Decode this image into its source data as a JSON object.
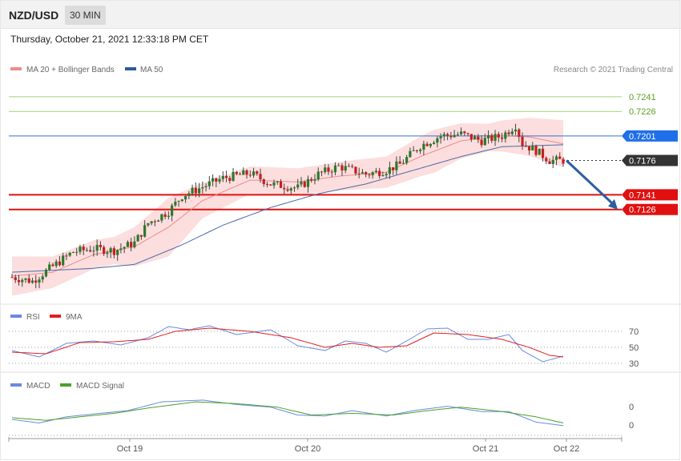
{
  "header": {
    "pair": "NZD/USD",
    "timeframe": "30 MIN"
  },
  "datetime": "Thursday, October 21, 2021 12:33:18 PM CET",
  "legend": {
    "ma20_bb": "MA 20 + Bollinger Bands",
    "ma50": "MA 50",
    "copyright": "Research © 2021 Trading Central",
    "rsi": "RSI",
    "rsi_ma": "9MA",
    "macd": "MACD",
    "macd_signal": "MACD Signal"
  },
  "colors": {
    "bull": "#2a7a2a",
    "bear": "#c81e1e",
    "band": "#fbd8d8",
    "ma20": "#f08a8a",
    "ma50": "#4a6aa8",
    "resistance": "#9ed37a",
    "pivot": "#3a6fd0",
    "support": "#e01010",
    "current": "#333333",
    "arrow": "#2d5fa0",
    "rsi": "#6a8ae0",
    "rsi_ma": "#e02020",
    "macd": "#6a8ae0",
    "macd_signal": "#4aa02a"
  },
  "chart_data": [
    {
      "type": "candlestick",
      "pair": "NZD/USD",
      "timeframe": "30 MIN",
      "price_levels": [
        {
          "value": 0.7241,
          "label": "0.7241",
          "kind": "resistance"
        },
        {
          "value": 0.7226,
          "label": "0.7226",
          "kind": "resistance"
        },
        {
          "value": 0.7201,
          "label": "0.7201",
          "kind": "pivot"
        },
        {
          "value": 0.7176,
          "label": "0.7176",
          "kind": "current"
        },
        {
          "value": 0.7141,
          "label": "0.7141",
          "kind": "support"
        },
        {
          "value": 0.7126,
          "label": "0.7126",
          "kind": "support"
        }
      ],
      "forecast_arrow": {
        "from": 0.7176,
        "to": 0.7126
      },
      "x_ticks": [
        "Oct 19",
        "Oct 20",
        "Oct 21",
        "Oct 22"
      ],
      "close_path": [
        {
          "i": 0,
          "v": 0.7057
        },
        {
          "i": 6,
          "v": 0.7053
        },
        {
          "i": 12,
          "v": 0.7068
        },
        {
          "i": 18,
          "v": 0.7083
        },
        {
          "i": 24,
          "v": 0.7086
        },
        {
          "i": 30,
          "v": 0.7084
        },
        {
          "i": 36,
          "v": 0.7092
        },
        {
          "i": 40,
          "v": 0.7112
        },
        {
          "i": 46,
          "v": 0.7124
        },
        {
          "i": 50,
          "v": 0.714
        },
        {
          "i": 56,
          "v": 0.7149
        },
        {
          "i": 62,
          "v": 0.7158
        },
        {
          "i": 70,
          "v": 0.7163
        },
        {
          "i": 76,
          "v": 0.7152
        },
        {
          "i": 84,
          "v": 0.7148
        },
        {
          "i": 90,
          "v": 0.7162
        },
        {
          "i": 96,
          "v": 0.717
        },
        {
          "i": 104,
          "v": 0.7162
        },
        {
          "i": 110,
          "v": 0.7166
        },
        {
          "i": 114,
          "v": 0.7172
        },
        {
          "i": 120,
          "v": 0.7191
        },
        {
          "i": 126,
          "v": 0.7201
        },
        {
          "i": 132,
          "v": 0.7203
        },
        {
          "i": 138,
          "v": 0.7196
        },
        {
          "i": 144,
          "v": 0.7201
        },
        {
          "i": 148,
          "v": 0.7212
        },
        {
          "i": 150,
          "v": 0.7193
        },
        {
          "i": 154,
          "v": 0.7186
        },
        {
          "i": 158,
          "v": 0.7176
        },
        {
          "i": 162,
          "v": 0.7176
        }
      ],
      "ma20_path": [
        {
          "i": 0,
          "v": 0.7058
        },
        {
          "i": 12,
          "v": 0.7062
        },
        {
          "i": 24,
          "v": 0.708
        },
        {
          "i": 36,
          "v": 0.7088
        },
        {
          "i": 46,
          "v": 0.7108
        },
        {
          "i": 56,
          "v": 0.7135
        },
        {
          "i": 70,
          "v": 0.7156
        },
        {
          "i": 84,
          "v": 0.7154
        },
        {
          "i": 96,
          "v": 0.716
        },
        {
          "i": 110,
          "v": 0.7164
        },
        {
          "i": 120,
          "v": 0.718
        },
        {
          "i": 132,
          "v": 0.7196
        },
        {
          "i": 144,
          "v": 0.7201
        },
        {
          "i": 152,
          "v": 0.72
        },
        {
          "i": 162,
          "v": 0.7193
        }
      ],
      "ma50_path": [
        {
          "i": 0,
          "v": 0.7062
        },
        {
          "i": 24,
          "v": 0.7066
        },
        {
          "i": 36,
          "v": 0.707
        },
        {
          "i": 50,
          "v": 0.709
        },
        {
          "i": 62,
          "v": 0.711
        },
        {
          "i": 76,
          "v": 0.7128
        },
        {
          "i": 90,
          "v": 0.7142
        },
        {
          "i": 104,
          "v": 0.7152
        },
        {
          "i": 120,
          "v": 0.7168
        },
        {
          "i": 132,
          "v": 0.718
        },
        {
          "i": 144,
          "v": 0.719
        },
        {
          "i": 162,
          "v": 0.7192
        }
      ],
      "bb_width_path": [
        {
          "i": 0,
          "v": 0.002
        },
        {
          "i": 12,
          "v": 0.0016
        },
        {
          "i": 30,
          "v": 0.0014
        },
        {
          "i": 46,
          "v": 0.003
        },
        {
          "i": 56,
          "v": 0.0018
        },
        {
          "i": 70,
          "v": 0.0014
        },
        {
          "i": 90,
          "v": 0.0014
        },
        {
          "i": 110,
          "v": 0.0016
        },
        {
          "i": 124,
          "v": 0.0022
        },
        {
          "i": 140,
          "v": 0.0014
        },
        {
          "i": 162,
          "v": 0.0024
        }
      ],
      "ylim": [
        0.7036,
        0.7258
      ]
    },
    {
      "type": "line",
      "name": "RSI",
      "levels": [
        70,
        50,
        30
      ],
      "ylim": [
        18,
        82
      ],
      "series": [
        {
          "name": "RSI",
          "path": [
            {
              "i": 0,
              "v": 46
            },
            {
              "i": 8,
              "v": 38
            },
            {
              "i": 16,
              "v": 55
            },
            {
              "i": 24,
              "v": 58
            },
            {
              "i": 32,
              "v": 53
            },
            {
              "i": 40,
              "v": 62
            },
            {
              "i": 46,
              "v": 76
            },
            {
              "i": 52,
              "v": 72
            },
            {
              "i": 58,
              "v": 77
            },
            {
              "i": 66,
              "v": 66
            },
            {
              "i": 76,
              "v": 72
            },
            {
              "i": 84,
              "v": 52
            },
            {
              "i": 92,
              "v": 46
            },
            {
              "i": 98,
              "v": 58
            },
            {
              "i": 104,
              "v": 55
            },
            {
              "i": 110,
              "v": 44
            },
            {
              "i": 116,
              "v": 58
            },
            {
              "i": 122,
              "v": 73
            },
            {
              "i": 128,
              "v": 74
            },
            {
              "i": 134,
              "v": 60
            },
            {
              "i": 140,
              "v": 60
            },
            {
              "i": 146,
              "v": 66
            },
            {
              "i": 150,
              "v": 46
            },
            {
              "i": 156,
              "v": 32
            },
            {
              "i": 162,
              "v": 39
            }
          ]
        },
        {
          "name": "9MA",
          "path": [
            {
              "i": 0,
              "v": 44
            },
            {
              "i": 10,
              "v": 42
            },
            {
              "i": 20,
              "v": 56
            },
            {
              "i": 30,
              "v": 57
            },
            {
              "i": 40,
              "v": 60
            },
            {
              "i": 48,
              "v": 70
            },
            {
              "i": 58,
              "v": 74
            },
            {
              "i": 70,
              "v": 70
            },
            {
              "i": 82,
              "v": 62
            },
            {
              "i": 92,
              "v": 50
            },
            {
              "i": 100,
              "v": 55
            },
            {
              "i": 108,
              "v": 50
            },
            {
              "i": 116,
              "v": 52
            },
            {
              "i": 124,
              "v": 68
            },
            {
              "i": 134,
              "v": 66
            },
            {
              "i": 144,
              "v": 60
            },
            {
              "i": 152,
              "v": 50
            },
            {
              "i": 158,
              "v": 40
            },
            {
              "i": 162,
              "v": 38
            }
          ]
        }
      ]
    },
    {
      "type": "line",
      "name": "MACD",
      "tick_labels": [
        "0",
        "0"
      ],
      "ylim": [
        -1.1,
        1.4
      ],
      "series": [
        {
          "name": "MACD",
          "path": [
            {
              "i": 0,
              "v": -0.15
            },
            {
              "i": 8,
              "v": -0.35
            },
            {
              "i": 16,
              "v": 0.0
            },
            {
              "i": 26,
              "v": 0.2
            },
            {
              "i": 34,
              "v": 0.35
            },
            {
              "i": 44,
              "v": 0.85
            },
            {
              "i": 56,
              "v": 0.95
            },
            {
              "i": 66,
              "v": 0.7
            },
            {
              "i": 76,
              "v": 0.55
            },
            {
              "i": 84,
              "v": 0.1
            },
            {
              "i": 92,
              "v": 0.05
            },
            {
              "i": 100,
              "v": 0.35
            },
            {
              "i": 110,
              "v": 0.05
            },
            {
              "i": 118,
              "v": 0.35
            },
            {
              "i": 128,
              "v": 0.6
            },
            {
              "i": 138,
              "v": 0.3
            },
            {
              "i": 146,
              "v": 0.3
            },
            {
              "i": 154,
              "v": -0.3
            },
            {
              "i": 162,
              "v": -0.5
            }
          ]
        },
        {
          "name": "MACD Signal",
          "path": [
            {
              "i": 0,
              "v": -0.05
            },
            {
              "i": 10,
              "v": -0.2
            },
            {
              "i": 20,
              "v": 0.0
            },
            {
              "i": 30,
              "v": 0.2
            },
            {
              "i": 40,
              "v": 0.5
            },
            {
              "i": 54,
              "v": 0.85
            },
            {
              "i": 66,
              "v": 0.75
            },
            {
              "i": 78,
              "v": 0.55
            },
            {
              "i": 88,
              "v": 0.1
            },
            {
              "i": 100,
              "v": 0.2
            },
            {
              "i": 112,
              "v": 0.1
            },
            {
              "i": 122,
              "v": 0.35
            },
            {
              "i": 132,
              "v": 0.55
            },
            {
              "i": 144,
              "v": 0.3
            },
            {
              "i": 154,
              "v": 0.0
            },
            {
              "i": 162,
              "v": -0.35
            }
          ]
        }
      ]
    }
  ]
}
